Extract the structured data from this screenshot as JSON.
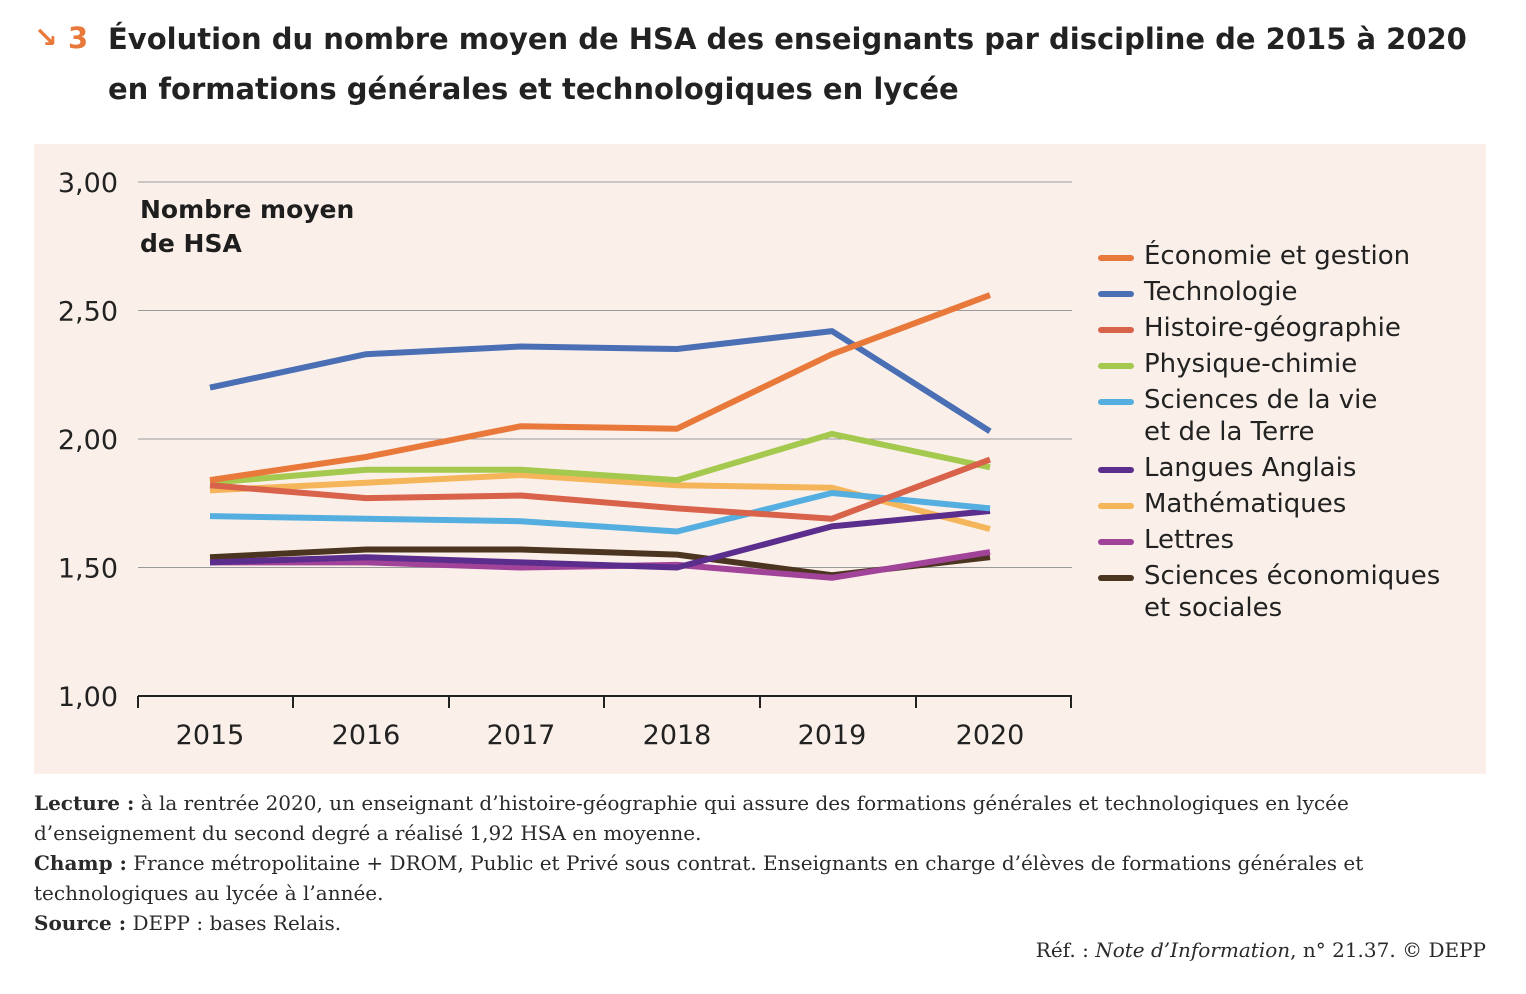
{
  "header": {
    "arrow_icon": "↘",
    "number": "3",
    "title_line1": "Évolution du nombre moyen de HSA des enseignants par discipline de 2015 à 2020",
    "title_line2": "en formations générales et technologiques en lycée"
  },
  "chart_data": {
    "type": "line",
    "ylabel_line1": "Nombre moyen",
    "ylabel_line2": "de HSA",
    "x": [
      "2015",
      "2016",
      "2017",
      "2018",
      "2019",
      "2020"
    ],
    "ylim": [
      1.0,
      3.0
    ],
    "yticks": [
      "1,00",
      "1,50",
      "2,00",
      "2,50",
      "3,00"
    ],
    "grid": true,
    "legend_position": "right",
    "series": [
      {
        "name": "Économie et gestion",
        "color": "#e8793b",
        "values": [
          1.84,
          1.93,
          2.05,
          2.04,
          2.33,
          2.56
        ]
      },
      {
        "name": "Technologie",
        "color": "#4a6fb5",
        "values": [
          2.2,
          2.33,
          2.36,
          2.35,
          2.42,
          2.03
        ]
      },
      {
        "name": "Histoire-géographie",
        "color": "#d9624a",
        "values": [
          1.82,
          1.77,
          1.78,
          1.73,
          1.69,
          1.92
        ]
      },
      {
        "name": "Physique-chimie",
        "color": "#a4c94e",
        "values": [
          1.83,
          1.88,
          1.88,
          1.84,
          2.02,
          1.89
        ]
      },
      {
        "name": "Sciences de la vie et de la Terre",
        "color": "#55aee0",
        "values": [
          1.7,
          1.69,
          1.68,
          1.64,
          1.79,
          1.73
        ]
      },
      {
        "name": "Langues Anglais",
        "color": "#5b2d8c",
        "values": [
          1.52,
          1.54,
          1.52,
          1.5,
          1.66,
          1.72
        ]
      },
      {
        "name": "Mathématiques",
        "color": "#f5b55a",
        "values": [
          1.8,
          1.83,
          1.86,
          1.82,
          1.81,
          1.65
        ]
      },
      {
        "name": "Lettres",
        "color": "#a2439a",
        "values": [
          1.52,
          1.52,
          1.5,
          1.51,
          1.46,
          1.56
        ]
      },
      {
        "name": "Sciences économiques et sociales",
        "color": "#4b3520",
        "values": [
          1.54,
          1.57,
          1.57,
          1.55,
          1.47,
          1.54
        ]
      }
    ]
  },
  "legend": {
    "labels": [
      "Économie et gestion",
      "Technologie",
      "Histoire-géographie",
      "Physique-chimie",
      "Sciences de la vie\net de la Terre",
      "Langues Anglais",
      "Mathématiques",
      "Lettres",
      "Sciences économiques\net sociales"
    ]
  },
  "notes": {
    "lecture_label": "Lecture :",
    "lecture_text": " à la rentrée 2020, un enseignant d’histoire-géographie qui assure des formations générales et technologiques en lycée d’enseignement du second degré a réalisé 1,92 HSA en moyenne.",
    "champ_label": "Champ :",
    "champ_text": " France métropolitaine + DROM, Public et Privé sous contrat. Enseignants en charge d’élèves de formations générales et technologiques au lycée à l’année.",
    "source_label": "Source :",
    "source_text": " DEPP : bases Relais."
  },
  "reference": {
    "prefix": "Réf. : ",
    "publication": "Note d’Information",
    "suffix": ", n° 21.37. © DEPP"
  }
}
